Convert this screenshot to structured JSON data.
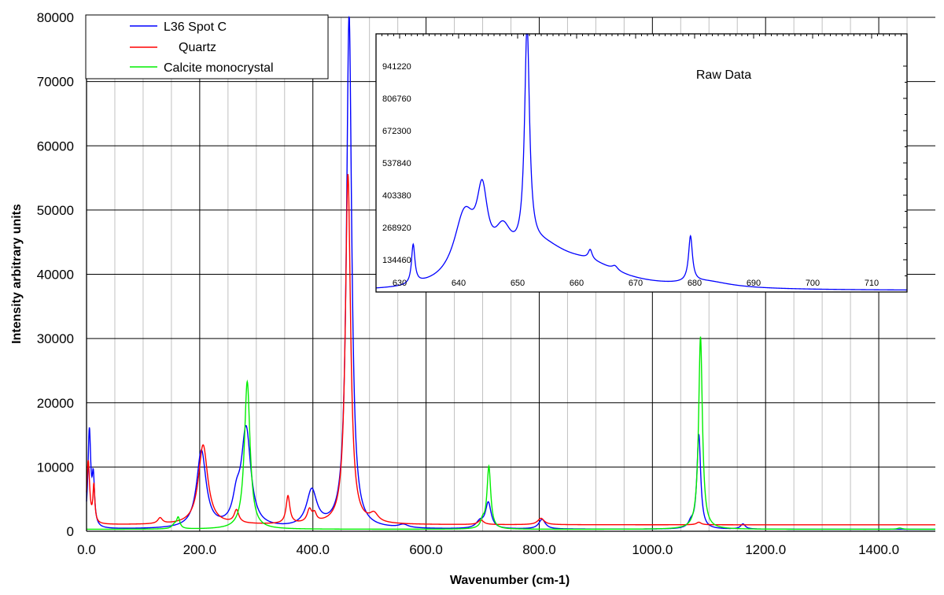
{
  "chart_data": {
    "type": "line",
    "xlabel": "Wavenumber (cm-1)",
    "ylabel": "Intensity arbitrary units",
    "xlim": [
      0,
      1500
    ],
    "ylim": [
      0,
      80000
    ],
    "x_ticks": [
      "0.0",
      "200.0",
      "400.0",
      "600.0",
      "800.0",
      "1000.0",
      "1200.0",
      "1400.0"
    ],
    "y_ticks": [
      "0",
      "10000",
      "20000",
      "30000",
      "40000",
      "50000",
      "60000",
      "70000",
      "80000"
    ],
    "grid": true,
    "legend_position": "top-left",
    "series": [
      {
        "name": "L36 Spot C",
        "color": "#0000ff",
        "baseline": 300,
        "peaks": [
          {
            "x": 5,
            "h": 15000,
            "w": 3
          },
          {
            "x": 12,
            "h": 7000,
            "w": 2.5
          },
          {
            "x": 203,
            "h": 12000,
            "w": 10
          },
          {
            "x": 265,
            "h": 3500,
            "w": 8
          },
          {
            "x": 282,
            "h": 15200,
            "w": 10
          },
          {
            "x": 398,
            "h": 5700,
            "w": 11
          },
          {
            "x": 464,
            "h": 80000,
            "w": 5.5
          },
          {
            "x": 560,
            "h": 500,
            "w": 10
          },
          {
            "x": 695,
            "h": 1000,
            "w": 8
          },
          {
            "x": 710,
            "h": 4000,
            "w": 6
          },
          {
            "x": 805,
            "h": 1500,
            "w": 7
          },
          {
            "x": 1068,
            "h": 800,
            "w": 5
          },
          {
            "x": 1082,
            "h": 14700,
            "w": 4
          },
          {
            "x": 1160,
            "h": 800,
            "w": 5
          }
        ]
      },
      {
        "name": "Quartz",
        "color": "#ff0000",
        "baseline": 1000,
        "peaks": [
          {
            "x": 3,
            "h": 9800,
            "w": 3
          },
          {
            "x": 13,
            "h": 5700,
            "w": 2
          },
          {
            "x": 130,
            "h": 900,
            "w": 5
          },
          {
            "x": 206,
            "h": 12400,
            "w": 10
          },
          {
            "x": 265,
            "h": 2000,
            "w": 5
          },
          {
            "x": 356,
            "h": 4300,
            "w": 4
          },
          {
            "x": 394,
            "h": 2000,
            "w": 5
          },
          {
            "x": 403,
            "h": 1200,
            "w": 4
          },
          {
            "x": 462,
            "h": 54500,
            "w": 5.5
          },
          {
            "x": 508,
            "h": 1300,
            "w": 9
          },
          {
            "x": 697,
            "h": 700,
            "w": 6
          },
          {
            "x": 803,
            "h": 1000,
            "w": 7
          },
          {
            "x": 1082,
            "h": 400,
            "w": 5
          }
        ]
      },
      {
        "name": "Calcite monocrystal",
        "color": "#00ee00",
        "baseline": 300,
        "peaks": [
          {
            "x": 155,
            "h": 600,
            "w": 5
          },
          {
            "x": 162,
            "h": 1700,
            "w": 3.5
          },
          {
            "x": 284,
            "h": 23000,
            "w": 6
          },
          {
            "x": 700,
            "h": 1100,
            "w": 4
          },
          {
            "x": 711,
            "h": 9700,
            "w": 4
          },
          {
            "x": 1085,
            "h": 30000,
            "w": 4
          },
          {
            "x": 1437,
            "h": 200,
            "w": 5
          }
        ]
      }
    ]
  },
  "inset": {
    "title": "Raw Data",
    "x_ticks": [
      "630",
      "640",
      "650",
      "660",
      "670",
      "680",
      "690",
      "700",
      "710"
    ],
    "y_ticks": [
      "134460",
      "268920",
      "403380",
      "537840",
      "672300",
      "806760",
      "941220"
    ],
    "xlim": [
      626,
      716
    ],
    "ylim": [
      0,
      1075680
    ],
    "baseline": 5000,
    "series": [
      {
        "name": "L36 Spot C",
        "color": "#0000ff",
        "peaks": [
          {
            "x": 626,
            "h": 0,
            "w": 1
          },
          {
            "x": 632.3,
            "h": 160000,
            "w": 0.35
          },
          {
            "x": 641,
            "h": 270000,
            "w": 2.2
          },
          {
            "x": 644,
            "h": 290000,
            "w": 1.1
          },
          {
            "x": 647.5,
            "h": 150000,
            "w": 1.8
          },
          {
            "x": 651.6,
            "h": 930000,
            "w": 0.5
          },
          {
            "x": 654,
            "h": 140000,
            "w": 5.5
          },
          {
            "x": 662,
            "h": 80000,
            "w": 7
          },
          {
            "x": 662.3,
            "h": 40000,
            "w": 0.4
          },
          {
            "x": 666.5,
            "h": 18000,
            "w": 0.6
          },
          {
            "x": 679.3,
            "h": 190000,
            "w": 0.4
          },
          {
            "x": 682,
            "h": 25000,
            "w": 5
          }
        ]
      }
    ]
  }
}
